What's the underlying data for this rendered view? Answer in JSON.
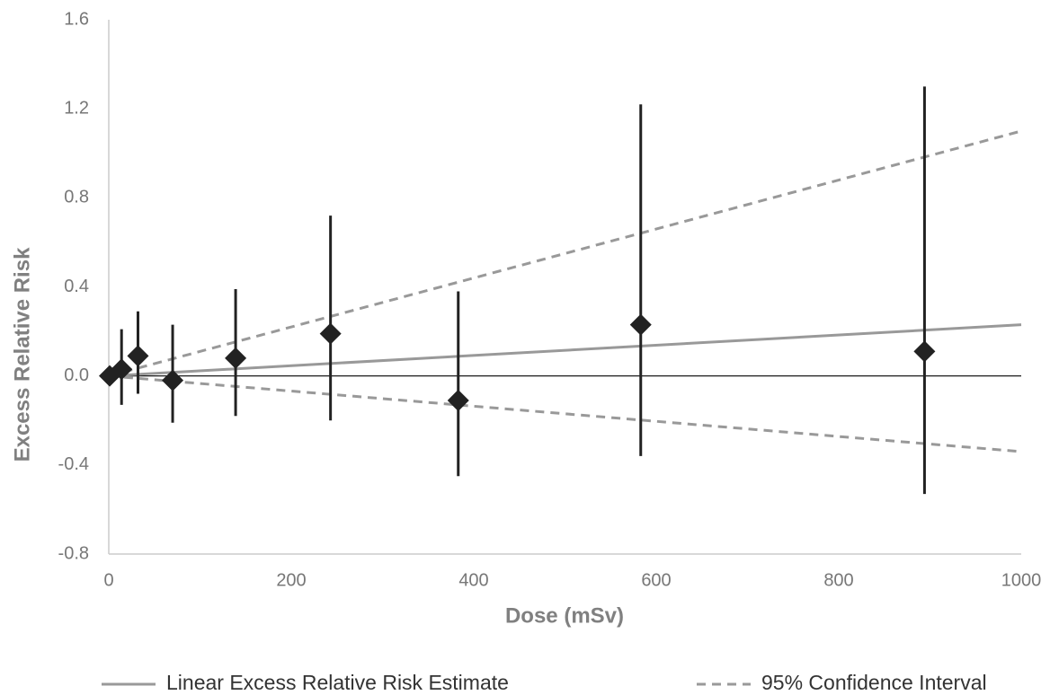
{
  "chart_data": {
    "type": "scatter",
    "x_label": "Dose (mSv)",
    "y_label": "Excess Relative Risk",
    "xlim": [
      0,
      1000
    ],
    "xticks": [
      0,
      200,
      400,
      600,
      800,
      1000
    ],
    "ylim": [
      -0.8,
      1.6
    ],
    "yticks": [
      -0.8,
      -0.4,
      {
        "value": 0,
        "label": "0.0"
      },
      0.4,
      0.8,
      1.2,
      1.6
    ],
    "grid": false,
    "legend": "bottom",
    "points": {
      "color": "#222222",
      "x": [
        1,
        14,
        32,
        70,
        139,
        243,
        383,
        583,
        894
      ],
      "values": [
        0,
        0.03,
        0.09,
        -0.02,
        0.08,
        0.19,
        -0.11,
        0.23,
        0.11
      ],
      "lower": [
        0,
        -0.13,
        -0.08,
        -0.21,
        -0.18,
        -0.2,
        -0.45,
        -0.36,
        -0.53
      ],
      "upper": [
        0,
        0.21,
        0.29,
        0.23,
        0.39,
        0.72,
        0.38,
        1.22,
        1.3
      ]
    },
    "series": [
      {
        "name": "Linear Excess Relative Risk Estimate",
        "color": "#999999",
        "style": "solid",
        "x": [
          0,
          1000
        ],
        "values": [
          0,
          0.23
        ]
      },
      {
        "name": "95% Confidence Interval",
        "color": "#999999",
        "style": "dashed",
        "x": [
          0,
          1000
        ],
        "values": [
          0,
          1.1
        ],
        "lower": [
          0,
          -0.34
        ]
      }
    ]
  }
}
